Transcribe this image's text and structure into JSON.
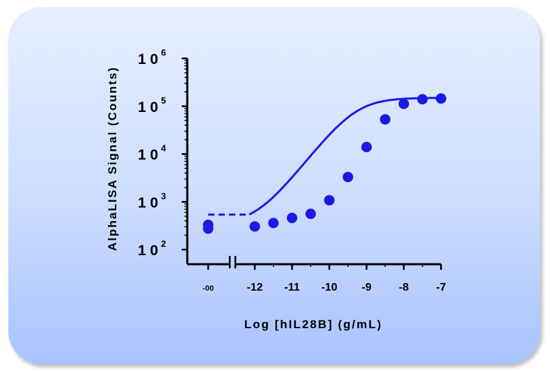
{
  "chart_data": {
    "type": "scatter",
    "title": "",
    "xlabel": "Log [hIL28B] (g/mL)",
    "ylabel": "AlphaLISA Signal (Counts)",
    "y_scale": "log",
    "ylim": [
      100,
      1000000
    ],
    "xlim": [
      -12.5,
      -7
    ],
    "x_break": true,
    "x_tick_labels": [
      "-00",
      "-12",
      "-11",
      "-10",
      "-9",
      "-8",
      "-7"
    ],
    "y_tick_labels": [
      {
        "base": "10",
        "exp": "2"
      },
      {
        "base": "10",
        "exp": "3"
      },
      {
        "base": "10",
        "exp": "4"
      },
      {
        "base": "10",
        "exp": "5"
      },
      {
        "base": "10",
        "exp": "6"
      }
    ],
    "baseline_points": [
      {
        "x_label": "-00",
        "y": 330
      },
      {
        "x_label": "-00",
        "y": 275
      }
    ],
    "series": [
      {
        "x": [
          -12.0,
          -11.5,
          -11.0,
          -10.5,
          -10.0,
          -9.5,
          -9.0,
          -8.5,
          -8.0,
          -7.5,
          -7.0
        ],
        "y": [
          305,
          360,
          460,
          560,
          1080,
          3300,
          14000,
          53000,
          112000,
          140000,
          145000
        ]
      }
    ],
    "fit": {
      "bottom": 330,
      "top": 150000,
      "log_ec50": -9.3,
      "hill": 1.0
    },
    "grid": false,
    "legend": "none",
    "colors": {
      "marker": "#1a1ae6",
      "axis": "#000000"
    }
  }
}
